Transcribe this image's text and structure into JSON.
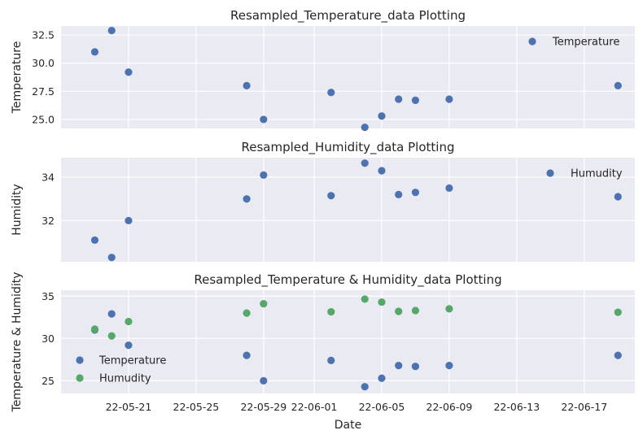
{
  "colors": {
    "axes_bg": "#eaeaf2",
    "grid": "#ffffff",
    "temperature": "#4c72b0",
    "humidity": "#55a868"
  },
  "chart_data": [
    {
      "type": "scatter",
      "title": "Resampled_Temperature_data Plotting",
      "xlabel": "",
      "ylabel": "Temperature",
      "ylim": [
        24.2,
        33.3
      ],
      "yticks": [
        "25.0",
        "27.5",
        "30.0",
        "32.5"
      ],
      "ytick_values": [
        25.0,
        27.5,
        30.0,
        32.5
      ],
      "xtick_labels_visible": false,
      "legend_placement": "top-right",
      "series": [
        {
          "name": "Temperature",
          "color_key": "temperature",
          "x": [
            "2022-05-19",
            "2022-05-20",
            "2022-05-21",
            "2022-05-28",
            "2022-05-29",
            "2022-06-02",
            "2022-06-04",
            "2022-06-05",
            "2022-06-06",
            "2022-06-07",
            "2022-06-09",
            "2022-06-19"
          ],
          "y": [
            31.0,
            32.9,
            29.2,
            28.0,
            25.0,
            27.4,
            24.3,
            25.3,
            26.8,
            26.7,
            26.8,
            28.0
          ]
        }
      ]
    },
    {
      "type": "scatter",
      "title": "Resampled_Humidity_data Plotting",
      "xlabel": "",
      "ylabel": "Humidity",
      "ylim": [
        30.1,
        34.9
      ],
      "yticks": [
        "32",
        "34"
      ],
      "ytick_values": [
        32,
        34
      ],
      "xtick_labels_visible": false,
      "legend_placement": "top-right",
      "series": [
        {
          "name": "Humudity",
          "color_key": "temperature",
          "x": [
            "2022-05-19",
            "2022-05-20",
            "2022-05-21",
            "2022-05-28",
            "2022-05-29",
            "2022-06-02",
            "2022-06-04",
            "2022-06-05",
            "2022-06-06",
            "2022-06-07",
            "2022-06-09",
            "2022-06-19"
          ],
          "y": [
            31.1,
            30.3,
            32.0,
            33.0,
            34.1,
            33.15,
            34.65,
            34.3,
            33.2,
            33.3,
            33.5,
            33.1
          ]
        }
      ]
    },
    {
      "type": "scatter",
      "title": "Resampled_Temperature & Humidity_data Plotting",
      "xlabel": "Date",
      "ylabel": "Temperature &  Humidity",
      "ylim": [
        23.5,
        35.7
      ],
      "yticks": [
        "25",
        "30",
        "35"
      ],
      "ytick_values": [
        25,
        30,
        35
      ],
      "xtick_labels_visible": true,
      "legend_placement": "center-left",
      "series": [
        {
          "name": "Temperature",
          "color_key": "temperature",
          "x": [
            "2022-05-19",
            "2022-05-20",
            "2022-05-21",
            "2022-05-28",
            "2022-05-29",
            "2022-06-02",
            "2022-06-04",
            "2022-06-05",
            "2022-06-06",
            "2022-06-07",
            "2022-06-09",
            "2022-06-19"
          ],
          "y": [
            31.0,
            32.9,
            29.2,
            28.0,
            25.0,
            27.4,
            24.3,
            25.3,
            26.8,
            26.7,
            26.8,
            28.0
          ]
        },
        {
          "name": "Humudity",
          "color_key": "humidity",
          "x": [
            "2022-05-19",
            "2022-05-20",
            "2022-05-21",
            "2022-05-28",
            "2022-05-29",
            "2022-06-02",
            "2022-06-04",
            "2022-06-05",
            "2022-06-06",
            "2022-06-07",
            "2022-06-09",
            "2022-06-19"
          ],
          "y": [
            31.1,
            30.3,
            32.0,
            33.0,
            34.1,
            33.15,
            34.65,
            34.3,
            33.2,
            33.3,
            33.5,
            33.1
          ]
        }
      ]
    }
  ],
  "shared_x": {
    "xlim": [
      "2022-05-17",
      "2022-06-20"
    ],
    "tick_dates": [
      "2022-05-21",
      "2022-05-25",
      "2022-05-29",
      "2022-06-01",
      "2022-06-05",
      "2022-06-09",
      "2022-06-13",
      "2022-06-17"
    ],
    "tick_labels": [
      "22-05-21",
      "22-05-25",
      "22-05-29",
      "22-06-01",
      "22-06-05",
      "22-06-09",
      "22-06-13",
      "22-06-17"
    ]
  }
}
